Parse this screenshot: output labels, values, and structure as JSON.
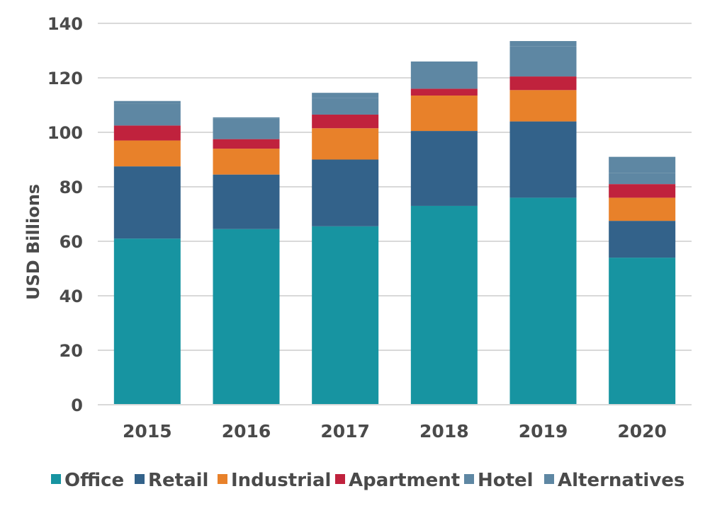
{
  "chart_data": {
    "type": "bar",
    "stacked": true,
    "categories": [
      "2015",
      "2016",
      "2017",
      "2018",
      "2019",
      "2020"
    ],
    "ylabel": "USD Billions",
    "xlabel": "",
    "ylim": [
      0,
      140
    ],
    "yticks": [
      "0",
      "20",
      "40",
      "60",
      "80",
      "100",
      "120",
      "140"
    ],
    "grid": true,
    "legend_position": "bottom",
    "series": [
      {
        "name": "Office",
        "color": "#1794A1",
        "values": [
          61,
          64.5,
          65.5,
          73,
          76,
          54
        ]
      },
      {
        "name": "Retail",
        "color": "#33628A",
        "values": [
          26.5,
          20,
          24.5,
          27.5,
          28,
          13.5
        ]
      },
      {
        "name": "Industrial",
        "color": "#E8812A",
        "values": [
          9.5,
          9.5,
          11.5,
          13,
          11.5,
          8.5
        ]
      },
      {
        "name": "Apartment",
        "color": "#C0223D",
        "values": [
          5.5,
          3.5,
          5,
          2.5,
          5,
          5
        ]
      },
      {
        "name": "Hotel",
        "color": "#5E87A3",
        "values": [
          8,
          7.5,
          6,
          10,
          11,
          4
        ]
      },
      {
        "name": "Alternatives",
        "color": "#5E87A3",
        "values": [
          1,
          0.5,
          2,
          0,
          2,
          6
        ]
      }
    ]
  }
}
